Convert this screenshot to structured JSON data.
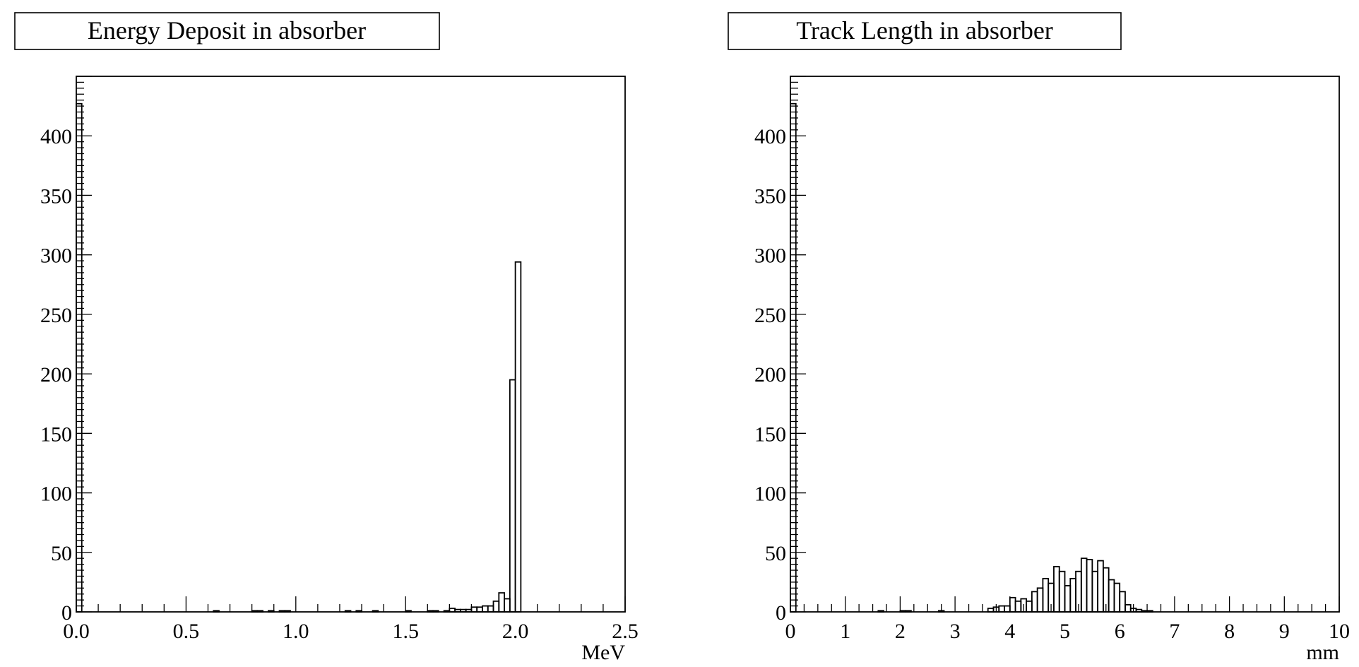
{
  "chart_data": [
    {
      "type": "bar",
      "title": "Energy Deposit in absorber",
      "xlabel": "MeV",
      "ylabel": "",
      "xlim": [
        0,
        2.5
      ],
      "ylim": [
        0,
        450
      ],
      "xticks": [
        0.0,
        0.5,
        1.0,
        1.5,
        2.0,
        2.5
      ],
      "xtick_labels": [
        "0.0",
        "0.5",
        "1.0",
        "1.5",
        "2.0",
        "2.5"
      ],
      "yticks": [
        0,
        50,
        100,
        150,
        200,
        250,
        300,
        350,
        400
      ],
      "ytick_labels": [
        "0",
        "50",
        "100",
        "150",
        "200",
        "250",
        "300",
        "350",
        "400"
      ],
      "grid": false,
      "bin_width": 0.025,
      "x": [
        0.0,
        0.625,
        0.8,
        0.825,
        0.875,
        0.925,
        0.95,
        1.225,
        1.275,
        1.35,
        1.5,
        1.6,
        1.625,
        1.675,
        1.7,
        1.725,
        1.75,
        1.775,
        1.8,
        1.825,
        1.85,
        1.875,
        1.9,
        1.925,
        1.95,
        1.975,
        2.0
      ],
      "values": [
        427,
        1,
        1,
        1,
        1,
        1,
        1,
        1,
        1,
        1,
        1,
        1,
        1,
        1,
        3,
        2,
        2,
        2,
        4,
        4,
        5,
        5,
        9,
        16,
        11,
        195,
        294
      ]
    },
    {
      "type": "bar",
      "title": "Track Length in absorber",
      "xlabel": "mm",
      "ylabel": "",
      "xlim": [
        0,
        10
      ],
      "ylim": [
        0,
        450
      ],
      "xticks": [
        0,
        1,
        2,
        3,
        4,
        5,
        6,
        7,
        8,
        9,
        10
      ],
      "xtick_labels": [
        "0",
        "1",
        "2",
        "3",
        "4",
        "5",
        "6",
        "7",
        "8",
        "9",
        "10"
      ],
      "yticks": [
        0,
        50,
        100,
        150,
        200,
        250,
        300,
        350,
        400
      ],
      "ytick_labels": [
        "0",
        "50",
        "100",
        "150",
        "200",
        "250",
        "300",
        "350",
        "400"
      ],
      "grid": false,
      "bin_width": 0.1,
      "x": [
        0.0,
        1.6,
        2.0,
        2.1,
        2.7,
        3.6,
        3.7,
        3.8,
        3.9,
        4.0,
        4.1,
        4.2,
        4.3,
        4.4,
        4.5,
        4.6,
        4.7,
        4.8,
        4.9,
        5.0,
        5.1,
        5.2,
        5.3,
        5.4,
        5.5,
        5.6,
        5.7,
        5.8,
        5.9,
        6.0,
        6.1,
        6.2,
        6.3,
        6.4,
        6.5
      ],
      "values": [
        427,
        1,
        1,
        1,
        1,
        3,
        4,
        5,
        5,
        12,
        9,
        11,
        9,
        17,
        20,
        28,
        24,
        38,
        34,
        22,
        28,
        34,
        45,
        44,
        34,
        43,
        37,
        27,
        24,
        17,
        6,
        3,
        2,
        1,
        1
      ]
    }
  ]
}
